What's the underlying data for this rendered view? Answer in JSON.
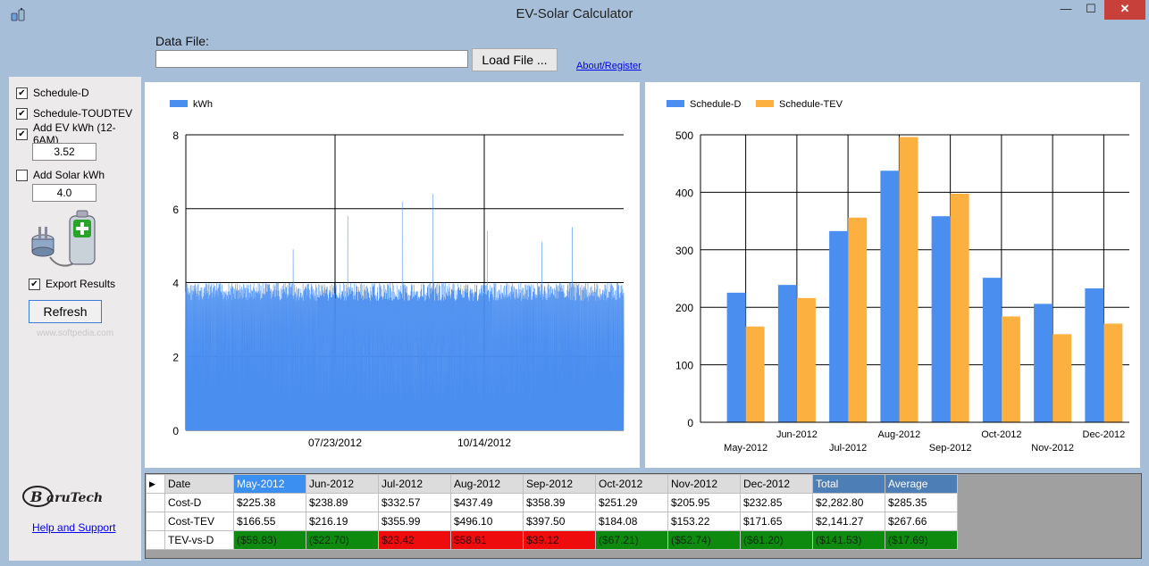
{
  "window": {
    "title": "EV-Solar Calculator",
    "min": "—",
    "max": "☐",
    "close": "✕"
  },
  "topbar": {
    "data_file_label": "Data File:",
    "data_file_value": "",
    "load_button": "Load File ...",
    "about_link": "About/Register"
  },
  "sidebar": {
    "schedule_d": "Schedule-D",
    "schedule_toudtev": "Schedule-TOUDTEV",
    "add_ev": "Add EV kWh (12-6AM)",
    "ev_value": "3.52",
    "add_solar": "Add Solar kWh",
    "solar_value": "4.0",
    "export_results": "Export Results",
    "refresh": "Refresh",
    "watermark": "www.softpedia.com",
    "help_link": "Help and Support",
    "checks": {
      "schedule_d": "✔",
      "schedule_toudtev": "✔",
      "add_ev": "✔",
      "add_solar": "",
      "export": "✔"
    }
  },
  "chart_data": [
    {
      "type": "area",
      "legend": [
        "kWh"
      ],
      "x_tick_labels": [
        "07/23/2012",
        "10/14/2012"
      ],
      "y_ticks": [
        "0",
        "2",
        "4",
        "6",
        "8"
      ],
      "ylim": [
        0,
        8
      ],
      "color": "#4a8ef0",
      "series": [
        {
          "name": "kWh",
          "baseline_range": [
            0.4,
            4.0
          ],
          "peaks": [
            4.9,
            5.8,
            6.2,
            6.4,
            5.4,
            5.1,
            5.5,
            4.9,
            4.3,
            4.1
          ]
        }
      ]
    },
    {
      "type": "bar",
      "categories": [
        "May-2012",
        "Jun-2012",
        "Jul-2012",
        "Aug-2012",
        "Sep-2012",
        "Oct-2012",
        "Nov-2012",
        "Dec-2012"
      ],
      "y_ticks": [
        "0",
        "100",
        "200",
        "300",
        "400",
        "500"
      ],
      "ylim": [
        0,
        500
      ],
      "series": [
        {
          "name": "Schedule-D",
          "color": "#4a8ef0",
          "values": [
            225.38,
            238.89,
            332.57,
            437.49,
            358.39,
            251.29,
            205.95,
            232.85
          ]
        },
        {
          "name": "Schedule-TEV",
          "color": "#fbb040",
          "values": [
            166.55,
            216.19,
            355.99,
            496.1,
            397.5,
            184.08,
            153.22,
            171.65
          ]
        }
      ]
    }
  ],
  "table": {
    "header": [
      "Date",
      "May-2012",
      "Jun-2012",
      "Jul-2012",
      "Aug-2012",
      "Sep-2012",
      "Oct-2012",
      "Nov-2012",
      "Dec-2012",
      "Total",
      "Average"
    ],
    "rows": [
      {
        "label": "Cost-D",
        "cells": [
          "$225.38",
          "$238.89",
          "$332.57",
          "$437.49",
          "$358.39",
          "$251.29",
          "$205.95",
          "$232.85",
          "$2,282.80",
          "$285.35"
        ]
      },
      {
        "label": "Cost-TEV",
        "cells": [
          "$166.55",
          "$216.19",
          "$355.99",
          "$496.10",
          "$397.50",
          "$184.08",
          "$153.22",
          "$171.65",
          "$2,141.27",
          "$267.66"
        ]
      },
      {
        "label": "TEV-vs-D",
        "cells": [
          "($58.83)",
          "($22.70)",
          "$23.42",
          "$58.61",
          "$39.12",
          "($67.21)",
          "($52.74)",
          "($61.20)",
          "($141.53)",
          "($17.69)"
        ]
      }
    ],
    "status_colors": {
      "negative": "#0e8a0e",
      "positive": "#ee0c0c"
    }
  }
}
